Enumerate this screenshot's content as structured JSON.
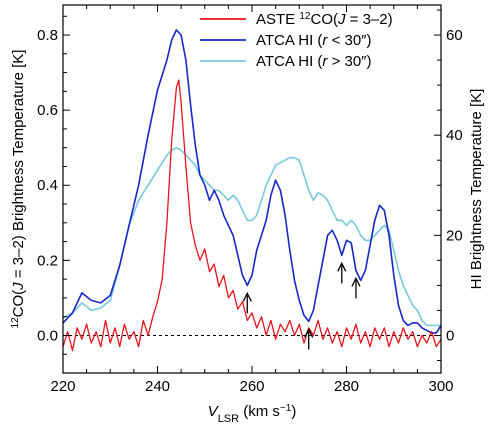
{
  "chart_data": {
    "type": "line",
    "title": "",
    "xlabel": {
      "main": "V",
      "sub": "LSR",
      "rest": " (km s",
      "sup": "−1",
      "end": ")"
    },
    "ylabel_left": {
      "sup": "12",
      "a": "CO(",
      "j": "J",
      "b": " = 3–2) Brightness Temperature [K]"
    },
    "ylabel_right": "HI Brightness Temperature [K]",
    "xlim": [
      220,
      300
    ],
    "ylim_left": [
      -0.1,
      0.88
    ],
    "ylim_right": [
      -7.5,
      66
    ],
    "x_ticks": [
      "220",
      "240",
      "260",
      "280",
      "300"
    ],
    "x_tick_values": [
      220,
      240,
      260,
      280,
      300
    ],
    "y_left_ticks": [
      "0.0",
      "0.2",
      "0.4",
      "0.6",
      "0.8"
    ],
    "y_left_tick_values": [
      0.0,
      0.2,
      0.4,
      0.6,
      0.8
    ],
    "y_right_ticks": [
      "0",
      "20",
      "40",
      "60"
    ],
    "y_right_tick_values": [
      0,
      20,
      40,
      60
    ],
    "grid": false,
    "legend_position": "top-right",
    "zero_line": 0.0,
    "series": [
      {
        "name": "ASTE ¹²CO(J = 3–2)",
        "legend": {
          "a": "ASTE ",
          "sup": "12",
          "b": "CO(",
          "j": "J",
          "c": " = 3–2)"
        },
        "color": "#e8141c",
        "axis": "left",
        "points": [
          [
            220,
            -0.03
          ],
          [
            221,
            0.01
          ],
          [
            222,
            -0.04
          ],
          [
            223,
            0.02
          ],
          [
            224,
            -0.01
          ],
          [
            225,
            0.03
          ],
          [
            226,
            -0.02
          ],
          [
            227,
            0.01
          ],
          [
            228,
            -0.03
          ],
          [
            229,
            0.04
          ],
          [
            230,
            -0.02
          ],
          [
            231,
            0.02
          ],
          [
            232,
            -0.03
          ],
          [
            233,
            0.03
          ],
          [
            234,
            -0.01
          ],
          [
            235,
            0.01
          ],
          [
            236,
            -0.03
          ],
          [
            237,
            0.04
          ],
          [
            238,
            0.0
          ],
          [
            239,
            0.05
          ],
          [
            240,
            0.09
          ],
          [
            241,
            0.15
          ],
          [
            242,
            0.3
          ],
          [
            243,
            0.52
          ],
          [
            244,
            0.66
          ],
          [
            244.5,
            0.68
          ],
          [
            245,
            0.62
          ],
          [
            246,
            0.45
          ],
          [
            247,
            0.3
          ],
          [
            248,
            0.24
          ],
          [
            249,
            0.2
          ],
          [
            250,
            0.23
          ],
          [
            251,
            0.17
          ],
          [
            252,
            0.19
          ],
          [
            253,
            0.13
          ],
          [
            254,
            0.16
          ],
          [
            255,
            0.1
          ],
          [
            256,
            0.12
          ],
          [
            257,
            0.07
          ],
          [
            258,
            0.09
          ],
          [
            259,
            0.04
          ],
          [
            260,
            0.06
          ],
          [
            261,
            0.02
          ],
          [
            262,
            0.05
          ],
          [
            263,
            0.0
          ],
          [
            264,
            0.04
          ],
          [
            265,
            -0.01
          ],
          [
            266,
            0.03
          ],
          [
            267,
            0.01
          ],
          [
            268,
            0.04
          ],
          [
            269,
            0.0
          ],
          [
            270,
            0.03
          ],
          [
            271,
            -0.02
          ],
          [
            272,
            0.02
          ],
          [
            273,
            0.0
          ],
          [
            274,
            0.04
          ],
          [
            275,
            -0.01
          ],
          [
            276,
            0.02
          ],
          [
            277,
            -0.02
          ],
          [
            278,
            0.01
          ],
          [
            279,
            -0.03
          ],
          [
            280,
            0.02
          ],
          [
            281,
            -0.01
          ],
          [
            282,
            0.03
          ],
          [
            283,
            -0.02
          ],
          [
            284,
            0.01
          ],
          [
            285,
            -0.03
          ],
          [
            286,
            0.02
          ],
          [
            287,
            -0.01
          ],
          [
            288,
            0.02
          ],
          [
            289,
            -0.03
          ],
          [
            290,
            0.01
          ],
          [
            291,
            -0.02
          ],
          [
            292,
            0.02
          ],
          [
            293,
            -0.01
          ],
          [
            294,
            0.01
          ],
          [
            295,
            -0.03
          ],
          [
            296,
            0.0
          ],
          [
            297,
            -0.02
          ],
          [
            298,
            0.01
          ],
          [
            299,
            -0.03
          ],
          [
            300,
            -0.01
          ]
        ]
      },
      {
        "name": "ATCA HI (r < 30″)",
        "legend": {
          "a": "ATCA HI (",
          "r": "r",
          "b": " < 30″)"
        },
        "color": "#1628c8",
        "axis": "right",
        "points": [
          [
            220,
            2.5
          ],
          [
            222,
            4.5
          ],
          [
            224,
            8.5
          ],
          [
            226,
            7
          ],
          [
            228,
            6.5
          ],
          [
            230,
            8
          ],
          [
            232,
            14
          ],
          [
            234,
            22
          ],
          [
            236,
            30
          ],
          [
            238,
            40
          ],
          [
            240,
            49
          ],
          [
            242,
            55
          ],
          [
            243,
            59
          ],
          [
            244,
            61
          ],
          [
            245,
            60
          ],
          [
            246,
            55
          ],
          [
            247,
            46
          ],
          [
            248,
            38
          ],
          [
            249,
            32
          ],
          [
            250,
            30
          ],
          [
            251,
            27
          ],
          [
            252,
            29
          ],
          [
            253,
            27
          ],
          [
            254,
            24
          ],
          [
            255,
            22
          ],
          [
            256,
            20
          ],
          [
            257,
            16
          ],
          [
            258,
            12
          ],
          [
            259,
            10
          ],
          [
            260,
            12
          ],
          [
            261,
            17
          ],
          [
            262,
            20
          ],
          [
            263,
            23
          ],
          [
            264,
            28
          ],
          [
            265,
            31
          ],
          [
            266,
            29
          ],
          [
            267,
            24
          ],
          [
            268,
            17
          ],
          [
            269,
            11
          ],
          [
            270,
            7
          ],
          [
            271,
            4
          ],
          [
            272,
            2.8
          ],
          [
            273,
            5
          ],
          [
            274,
            10
          ],
          [
            275,
            15
          ],
          [
            276,
            20
          ],
          [
            277,
            21
          ],
          [
            278,
            19
          ],
          [
            279,
            16
          ],
          [
            280,
            19
          ],
          [
            281,
            18.5
          ],
          [
            282,
            13
          ],
          [
            283,
            11
          ],
          [
            284,
            13
          ],
          [
            285,
            18
          ],
          [
            286,
            23
          ],
          [
            287,
            26
          ],
          [
            288,
            25
          ],
          [
            289,
            20
          ],
          [
            290,
            12
          ],
          [
            291,
            6
          ],
          [
            292,
            3
          ],
          [
            293,
            2
          ],
          [
            294,
            2.5
          ],
          [
            295,
            2.5
          ],
          [
            296,
            1.5
          ],
          [
            297,
            1
          ],
          [
            298,
            0.5
          ],
          [
            299,
            0.5
          ],
          [
            300,
            2
          ]
        ]
      },
      {
        "name": "ATCA HI (r > 30″)",
        "legend": {
          "a": "ATCA HI (",
          "r": "r",
          "b": " > 30″)"
        },
        "color": "#78c8dc",
        "axis": "right",
        "points": [
          [
            220,
            3.5
          ],
          [
            222,
            4.5
          ],
          [
            224,
            6.5
          ],
          [
            226,
            5
          ],
          [
            228,
            5.5
          ],
          [
            230,
            7
          ],
          [
            232,
            14
          ],
          [
            234,
            22
          ],
          [
            236,
            27
          ],
          [
            238,
            30
          ],
          [
            240,
            33
          ],
          [
            242,
            36
          ],
          [
            243,
            37
          ],
          [
            244,
            37.5
          ],
          [
            245,
            37
          ],
          [
            246,
            36
          ],
          [
            247,
            35
          ],
          [
            248,
            34
          ],
          [
            249,
            32
          ],
          [
            250,
            31
          ],
          [
            251,
            30
          ],
          [
            252,
            29
          ],
          [
            253,
            29
          ],
          [
            254,
            28
          ],
          [
            255,
            27
          ],
          [
            256,
            28
          ],
          [
            257,
            27
          ],
          [
            258,
            25
          ],
          [
            259,
            23
          ],
          [
            260,
            23
          ],
          [
            261,
            24
          ],
          [
            262,
            27
          ],
          [
            263,
            30
          ],
          [
            264,
            32
          ],
          [
            265,
            34
          ],
          [
            266,
            34.5
          ],
          [
            267,
            35
          ],
          [
            268,
            35.5
          ],
          [
            269,
            35.5
          ],
          [
            270,
            35
          ],
          [
            271,
            32
          ],
          [
            272,
            29
          ],
          [
            273,
            27
          ],
          [
            274,
            28.5
          ],
          [
            275,
            28
          ],
          [
            276,
            27
          ],
          [
            277,
            25
          ],
          [
            278,
            23
          ],
          [
            279,
            23
          ],
          [
            280,
            22
          ],
          [
            281,
            23
          ],
          [
            282,
            22
          ],
          [
            283,
            20
          ],
          [
            284,
            19
          ],
          [
            285,
            19
          ],
          [
            286,
            20
          ],
          [
            287,
            21
          ],
          [
            288,
            22
          ],
          [
            289,
            21
          ],
          [
            290,
            17
          ],
          [
            291,
            13
          ],
          [
            292,
            10
          ],
          [
            293,
            8
          ],
          [
            294,
            6
          ],
          [
            295,
            5
          ],
          [
            296,
            3
          ],
          [
            297,
            2
          ],
          [
            298,
            2
          ],
          [
            299,
            2
          ],
          [
            300,
            2
          ]
        ]
      }
    ],
    "arrows_at_x": [
      259,
      272,
      279,
      282
    ]
  }
}
